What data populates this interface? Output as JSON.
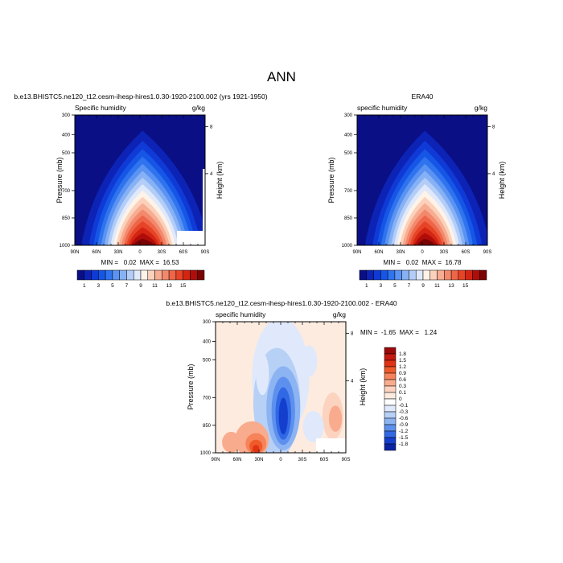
{
  "figure": {
    "title": "ANN"
  },
  "chart_data": [
    {
      "type": "heatmap",
      "title": "b.e13.BHISTC5.ne120_t12.cesm-ihesp-hires1.0.30-1920-2100.002 (yrs 1921-1950)",
      "left_label": "Specific humidity",
      "right_label": "g/kg",
      "xlabel": "",
      "ylabel": "Pressure (mb)",
      "y2label": "Height (km)",
      "x_ticks": [
        "90N",
        "60N",
        "30N",
        "0",
        "30S",
        "60S",
        "90S"
      ],
      "y_ticks": [
        300,
        400,
        500,
        700,
        850,
        1000
      ],
      "y2_ticks": [
        8,
        4
      ],
      "ylim": [
        1000,
        300
      ],
      "stats": "MIN =   0.02  MAX =  16.53",
      "min": 0.02,
      "max": 16.53
    },
    {
      "type": "heatmap",
      "title": "ERA40",
      "left_label": "specific humidity",
      "right_label": "g/kg",
      "xlabel": "",
      "ylabel": "Pressure (mb)",
      "y2label": "Height (km)",
      "x_ticks": [
        "90N",
        "60N",
        "30N",
        "0",
        "30S",
        "60S",
        "90S"
      ],
      "y_ticks": [
        300,
        400,
        500,
        700,
        850,
        1000
      ],
      "y2_ticks": [
        8,
        4
      ],
      "ylim": [
        1000,
        300
      ],
      "stats": "MIN =   0.02  MAX =  16.78",
      "min": 0.02,
      "max": 16.78
    },
    {
      "type": "heatmap",
      "title": "b.e13.BHISTC5.ne120_t12.cesm-ihesp-hires1.0.30-1920-2100.002 - ERA40",
      "left_label": "specific humidity",
      "right_label": "g/kg",
      "xlabel": "",
      "ylabel": "Pressure (mb)",
      "y2label": "Height (km)",
      "x_ticks": [
        "90N",
        "60N",
        "30N",
        "0",
        "30S",
        "60S",
        "90S"
      ],
      "y_ticks": [
        300,
        400,
        500,
        700,
        850,
        1000
      ],
      "y2_ticks": [
        8,
        4
      ],
      "ylim": [
        1000,
        300
      ],
      "stats": "MIN =  -1.65  MAX =   1.24",
      "min": -1.65,
      "max": 1.24
    }
  ],
  "colorbars": {
    "abs": {
      "labels": [
        "1",
        "3",
        "5",
        "7",
        "9",
        "11",
        "13",
        "15"
      ],
      "colors": [
        "#0a0f86",
        "#0c23b6",
        "#0f3ad6",
        "#1656e6",
        "#2f74ee",
        "#5b93f2",
        "#87b1f5",
        "#b3cdf7",
        "#dfe9fb",
        "#fff3e8",
        "#fbd1bb",
        "#f7ad92",
        "#f3896c",
        "#ee6547",
        "#e64427",
        "#d42513",
        "#b00d0a",
        "#7b0303"
      ]
    },
    "diff": {
      "labels": [
        "1.8",
        "1.5",
        "1.2",
        "0.9",
        "0.6",
        "0.3",
        "0.1",
        "0",
        "-0.1",
        "-0.3",
        "-0.6",
        "-0.9",
        "-1.2",
        "-1.5",
        "-1.8"
      ],
      "colors": [
        "#9a0a0a",
        "#c4190f",
        "#e03214",
        "#ef5a2a",
        "#f6835a",
        "#f9ab8e",
        "#fcd3bf",
        "#fdebdf",
        "#ffffff",
        "#dfe9fb",
        "#b7d0f6",
        "#8cb3f2",
        "#5d90ee",
        "#3168e4",
        "#143fce",
        "#0b22a4"
      ]
    }
  }
}
